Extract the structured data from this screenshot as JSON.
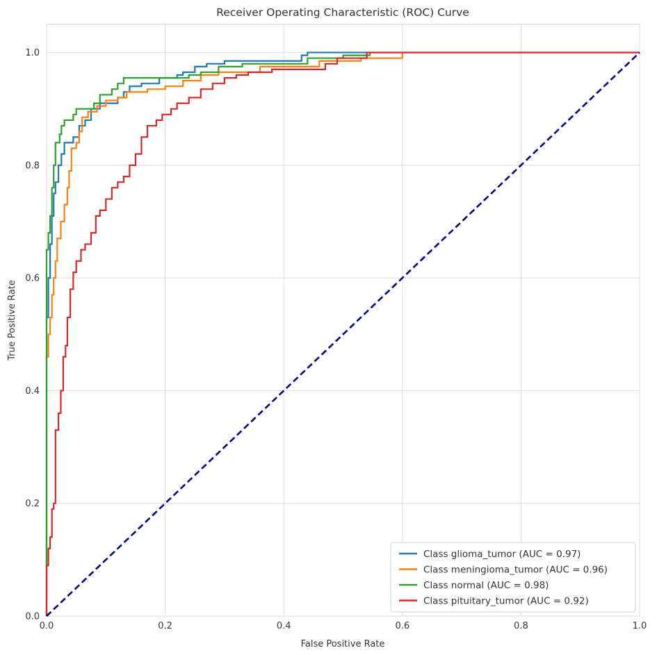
{
  "chart_data": {
    "type": "line",
    "title": "Receiver Operating Characteristic (ROC) Curve",
    "xlabel": "False Positive Rate",
    "ylabel": "True Positive Rate",
    "xlim": [
      0.0,
      1.0
    ],
    "ylim": [
      0.0,
      1.05
    ],
    "xticks": [
      0.0,
      0.2,
      0.4,
      0.6,
      0.8,
      1.0
    ],
    "xtick_labels": [
      "0.0",
      "0.2",
      "0.4",
      "0.6",
      "0.8",
      "1.0"
    ],
    "yticks": [
      0.0,
      0.2,
      0.4,
      0.6,
      0.8,
      1.0
    ],
    "ytick_labels": [
      "0.0",
      "0.2",
      "0.4",
      "0.6",
      "0.8",
      "1.0"
    ],
    "grid": true,
    "legend_position": "lower-right",
    "series": [
      {
        "name": "Class glioma_tumor (AUC = 0.97)",
        "color": "#1f77b4",
        "style": "solid",
        "points": [
          [
            0,
            0
          ],
          [
            0,
            0.53
          ],
          [
            0.003,
            0.53
          ],
          [
            0.003,
            0.6
          ],
          [
            0.006,
            0.6
          ],
          [
            0.006,
            0.66
          ],
          [
            0.009,
            0.66
          ],
          [
            0.009,
            0.71
          ],
          [
            0.012,
            0.71
          ],
          [
            0.012,
            0.75
          ],
          [
            0.015,
            0.75
          ],
          [
            0.015,
            0.77
          ],
          [
            0.02,
            0.77
          ],
          [
            0.02,
            0.8
          ],
          [
            0.025,
            0.8
          ],
          [
            0.025,
            0.82
          ],
          [
            0.03,
            0.82
          ],
          [
            0.03,
            0.84
          ],
          [
            0.045,
            0.84
          ],
          [
            0.045,
            0.85
          ],
          [
            0.055,
            0.85
          ],
          [
            0.055,
            0.87
          ],
          [
            0.065,
            0.87
          ],
          [
            0.065,
            0.88
          ],
          [
            0.075,
            0.88
          ],
          [
            0.075,
            0.9
          ],
          [
            0.09,
            0.9
          ],
          [
            0.09,
            0.91
          ],
          [
            0.12,
            0.91
          ],
          [
            0.12,
            0.92
          ],
          [
            0.13,
            0.92
          ],
          [
            0.13,
            0.93
          ],
          [
            0.14,
            0.93
          ],
          [
            0.14,
            0.94
          ],
          [
            0.16,
            0.94
          ],
          [
            0.16,
            0.945
          ],
          [
            0.19,
            0.945
          ],
          [
            0.19,
            0.955
          ],
          [
            0.22,
            0.955
          ],
          [
            0.22,
            0.96
          ],
          [
            0.23,
            0.96
          ],
          [
            0.23,
            0.965
          ],
          [
            0.25,
            0.965
          ],
          [
            0.25,
            0.975
          ],
          [
            0.27,
            0.975
          ],
          [
            0.27,
            0.98
          ],
          [
            0.3,
            0.98
          ],
          [
            0.3,
            0.985
          ],
          [
            0.43,
            0.985
          ],
          [
            0.43,
            0.995
          ],
          [
            0.44,
            0.995
          ],
          [
            0.44,
            1.0
          ],
          [
            1.0,
            1.0
          ]
        ]
      },
      {
        "name": "Class meningioma_tumor (AUC = 0.96)",
        "color": "#ff7f0e",
        "style": "solid",
        "points": [
          [
            0,
            0
          ],
          [
            0,
            0.46
          ],
          [
            0.003,
            0.46
          ],
          [
            0.003,
            0.5
          ],
          [
            0.006,
            0.5
          ],
          [
            0.006,
            0.53
          ],
          [
            0.009,
            0.53
          ],
          [
            0.009,
            0.57
          ],
          [
            0.012,
            0.57
          ],
          [
            0.012,
            0.6
          ],
          [
            0.015,
            0.6
          ],
          [
            0.015,
            0.63
          ],
          [
            0.018,
            0.63
          ],
          [
            0.018,
            0.67
          ],
          [
            0.024,
            0.67
          ],
          [
            0.024,
            0.7
          ],
          [
            0.03,
            0.7
          ],
          [
            0.03,
            0.73
          ],
          [
            0.035,
            0.73
          ],
          [
            0.035,
            0.76
          ],
          [
            0.038,
            0.76
          ],
          [
            0.038,
            0.79
          ],
          [
            0.042,
            0.79
          ],
          [
            0.042,
            0.83
          ],
          [
            0.05,
            0.83
          ],
          [
            0.05,
            0.84
          ],
          [
            0.055,
            0.84
          ],
          [
            0.055,
            0.86
          ],
          [
            0.06,
            0.86
          ],
          [
            0.06,
            0.885
          ],
          [
            0.07,
            0.885
          ],
          [
            0.07,
            0.895
          ],
          [
            0.085,
            0.895
          ],
          [
            0.085,
            0.905
          ],
          [
            0.1,
            0.905
          ],
          [
            0.1,
            0.915
          ],
          [
            0.12,
            0.915
          ],
          [
            0.12,
            0.92
          ],
          [
            0.135,
            0.92
          ],
          [
            0.135,
            0.93
          ],
          [
            0.17,
            0.93
          ],
          [
            0.17,
            0.935
          ],
          [
            0.2,
            0.935
          ],
          [
            0.2,
            0.94
          ],
          [
            0.23,
            0.94
          ],
          [
            0.23,
            0.95
          ],
          [
            0.26,
            0.95
          ],
          [
            0.26,
            0.96
          ],
          [
            0.29,
            0.96
          ],
          [
            0.29,
            0.965
          ],
          [
            0.36,
            0.965
          ],
          [
            0.36,
            0.975
          ],
          [
            0.46,
            0.975
          ],
          [
            0.46,
            0.985
          ],
          [
            0.53,
            0.985
          ],
          [
            0.53,
            0.99
          ],
          [
            0.6,
            0.99
          ],
          [
            0.6,
            1.0
          ],
          [
            1.0,
            1.0
          ]
        ]
      },
      {
        "name": "Class normal (AUC = 0.98)",
        "color": "#2ca02c",
        "style": "solid",
        "points": [
          [
            0,
            0
          ],
          [
            0,
            0.65
          ],
          [
            0.003,
            0.65
          ],
          [
            0.003,
            0.68
          ],
          [
            0.006,
            0.68
          ],
          [
            0.006,
            0.71
          ],
          [
            0.009,
            0.71
          ],
          [
            0.009,
            0.76
          ],
          [
            0.012,
            0.76
          ],
          [
            0.012,
            0.8
          ],
          [
            0.015,
            0.8
          ],
          [
            0.015,
            0.84
          ],
          [
            0.022,
            0.84
          ],
          [
            0.022,
            0.855
          ],
          [
            0.025,
            0.855
          ],
          [
            0.025,
            0.87
          ],
          [
            0.03,
            0.87
          ],
          [
            0.03,
            0.88
          ],
          [
            0.045,
            0.88
          ],
          [
            0.045,
            0.89
          ],
          [
            0.05,
            0.89
          ],
          [
            0.05,
            0.9
          ],
          [
            0.08,
            0.9
          ],
          [
            0.08,
            0.91
          ],
          [
            0.09,
            0.91
          ],
          [
            0.09,
            0.925
          ],
          [
            0.11,
            0.925
          ],
          [
            0.11,
            0.935
          ],
          [
            0.12,
            0.935
          ],
          [
            0.12,
            0.945
          ],
          [
            0.13,
            0.945
          ],
          [
            0.13,
            0.955
          ],
          [
            0.24,
            0.955
          ],
          [
            0.24,
            0.96
          ],
          [
            0.26,
            0.96
          ],
          [
            0.26,
            0.965
          ],
          [
            0.29,
            0.965
          ],
          [
            0.29,
            0.975
          ],
          [
            0.33,
            0.975
          ],
          [
            0.33,
            0.98
          ],
          [
            0.44,
            0.98
          ],
          [
            0.44,
            0.99
          ],
          [
            0.5,
            0.99
          ],
          [
            0.5,
            0.995
          ],
          [
            0.545,
            0.995
          ],
          [
            0.545,
            1.0
          ],
          [
            1.0,
            1.0
          ]
        ]
      },
      {
        "name": "Class pituitary_tumor (AUC = 0.92)",
        "color": "#d62728",
        "style": "solid",
        "points": [
          [
            0,
            0
          ],
          [
            0,
            0.09
          ],
          [
            0.003,
            0.09
          ],
          [
            0.003,
            0.12
          ],
          [
            0.006,
            0.12
          ],
          [
            0.006,
            0.14
          ],
          [
            0.009,
            0.14
          ],
          [
            0.009,
            0.19
          ],
          [
            0.012,
            0.19
          ],
          [
            0.012,
            0.2
          ],
          [
            0.015,
            0.2
          ],
          [
            0.015,
            0.33
          ],
          [
            0.02,
            0.33
          ],
          [
            0.02,
            0.36
          ],
          [
            0.024,
            0.36
          ],
          [
            0.024,
            0.4
          ],
          [
            0.028,
            0.4
          ],
          [
            0.028,
            0.46
          ],
          [
            0.032,
            0.46
          ],
          [
            0.032,
            0.48
          ],
          [
            0.035,
            0.48
          ],
          [
            0.035,
            0.53
          ],
          [
            0.04,
            0.53
          ],
          [
            0.04,
            0.58
          ],
          [
            0.045,
            0.58
          ],
          [
            0.045,
            0.61
          ],
          [
            0.05,
            0.61
          ],
          [
            0.05,
            0.63
          ],
          [
            0.058,
            0.63
          ],
          [
            0.058,
            0.65
          ],
          [
            0.065,
            0.65
          ],
          [
            0.065,
            0.66
          ],
          [
            0.075,
            0.66
          ],
          [
            0.075,
            0.68
          ],
          [
            0.083,
            0.68
          ],
          [
            0.083,
            0.71
          ],
          [
            0.09,
            0.71
          ],
          [
            0.09,
            0.72
          ],
          [
            0.1,
            0.72
          ],
          [
            0.1,
            0.74
          ],
          [
            0.11,
            0.74
          ],
          [
            0.11,
            0.76
          ],
          [
            0.12,
            0.76
          ],
          [
            0.12,
            0.77
          ],
          [
            0.13,
            0.77
          ],
          [
            0.13,
            0.78
          ],
          [
            0.14,
            0.78
          ],
          [
            0.14,
            0.8
          ],
          [
            0.15,
            0.8
          ],
          [
            0.15,
            0.82
          ],
          [
            0.16,
            0.82
          ],
          [
            0.16,
            0.85
          ],
          [
            0.17,
            0.85
          ],
          [
            0.17,
            0.87
          ],
          [
            0.185,
            0.87
          ],
          [
            0.185,
            0.88
          ],
          [
            0.195,
            0.88
          ],
          [
            0.195,
            0.89
          ],
          [
            0.21,
            0.89
          ],
          [
            0.21,
            0.9
          ],
          [
            0.22,
            0.9
          ],
          [
            0.22,
            0.91
          ],
          [
            0.24,
            0.91
          ],
          [
            0.24,
            0.92
          ],
          [
            0.26,
            0.92
          ],
          [
            0.26,
            0.935
          ],
          [
            0.28,
            0.935
          ],
          [
            0.28,
            0.945
          ],
          [
            0.3,
            0.945
          ],
          [
            0.3,
            0.955
          ],
          [
            0.32,
            0.955
          ],
          [
            0.32,
            0.96
          ],
          [
            0.34,
            0.96
          ],
          [
            0.34,
            0.965
          ],
          [
            0.38,
            0.965
          ],
          [
            0.38,
            0.97
          ],
          [
            0.47,
            0.97
          ],
          [
            0.47,
            0.98
          ],
          [
            0.49,
            0.98
          ],
          [
            0.49,
            0.99
          ],
          [
            0.54,
            0.99
          ],
          [
            0.54,
            1.0
          ],
          [
            1.0,
            1.0
          ]
        ]
      },
      {
        "name": "",
        "color": "#000080",
        "style": "dashed",
        "points": [
          [
            0,
            0
          ],
          [
            1,
            1
          ]
        ]
      }
    ]
  }
}
